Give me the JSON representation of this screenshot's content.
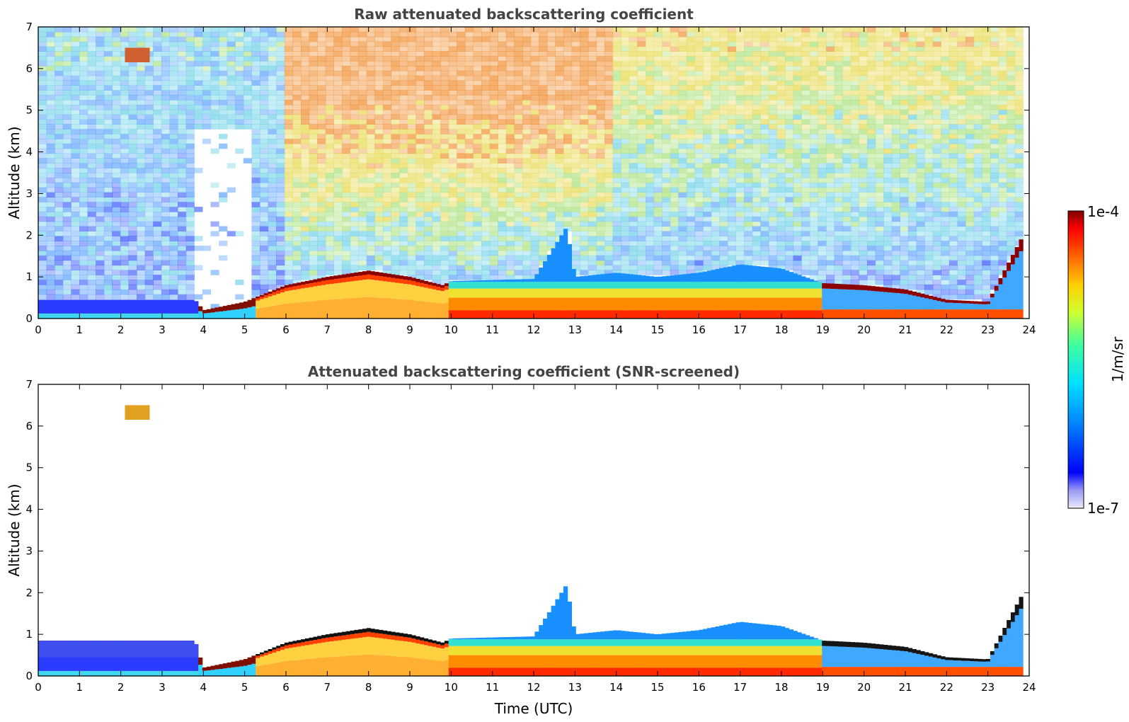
{
  "chart_data": [
    {
      "type": "heatmap",
      "title": "Raw attenuated backscattering coefficient",
      "xlabel": "",
      "ylabel": "Altitude (km)",
      "xlim": [
        0,
        24
      ],
      "ylim": [
        0,
        7
      ],
      "xticks": [
        "0",
        "1",
        "2",
        "3",
        "4",
        "5",
        "6",
        "7",
        "8",
        "9",
        "10",
        "11",
        "12",
        "13",
        "14",
        "15",
        "16",
        "17",
        "18",
        "19",
        "20",
        "21",
        "22",
        "23",
        "24"
      ],
      "yticks": [
        "0",
        "1",
        "2",
        "3",
        "4",
        "5",
        "6",
        "7"
      ],
      "screened": false,
      "boundary_layer_top_km": {
        "t": [
          0,
          3.8,
          4.0,
          5.0,
          6.0,
          7.0,
          8.0,
          9.0,
          9.8,
          10.0,
          12.0,
          12.8,
          13.0,
          14.0,
          15.0,
          16.0,
          17.0,
          18.0,
          19.0,
          20.0,
          21.0,
          22.0,
          23.0,
          23.8
        ],
        "km": [
          0.45,
          0.45,
          0.2,
          0.4,
          0.8,
          1.0,
          1.15,
          1.0,
          0.8,
          0.9,
          0.95,
          2.2,
          1.0,
          1.1,
          1.0,
          1.1,
          1.3,
          1.2,
          0.85,
          0.8,
          0.7,
          0.45,
          0.4,
          1.9
        ]
      },
      "elevated_layer": {
        "t_start": 2.1,
        "t_end": 2.7,
        "altitude_km": 6.3
      }
    },
    {
      "type": "heatmap",
      "title": "Attenuated backscattering coefficient (SNR-screened)",
      "xlabel": "Time (UTC)",
      "ylabel": "Altitude (km)",
      "xlim": [
        0,
        24
      ],
      "ylim": [
        0,
        7
      ],
      "xticks": [
        "0",
        "1",
        "2",
        "3",
        "4",
        "5",
        "6",
        "7",
        "8",
        "9",
        "10",
        "11",
        "12",
        "13",
        "14",
        "15",
        "16",
        "17",
        "18",
        "19",
        "20",
        "21",
        "22",
        "23",
        "24"
      ],
      "yticks": [
        "0",
        "1",
        "2",
        "3",
        "4",
        "5",
        "6",
        "7"
      ],
      "screened": true,
      "boundary_layer_top_km": {
        "t": [
          0,
          3.8,
          4.0,
          5.0,
          6.0,
          7.0,
          8.0,
          9.0,
          9.8,
          10.0,
          12.0,
          12.8,
          13.0,
          14.0,
          15.0,
          16.0,
          17.0,
          18.0,
          19.0,
          20.0,
          21.0,
          22.0,
          23.0,
          23.8
        ],
        "km": [
          0.85,
          0.85,
          0.2,
          0.4,
          0.8,
          1.0,
          1.15,
          1.0,
          0.8,
          0.9,
          0.95,
          2.2,
          1.0,
          1.1,
          1.0,
          1.1,
          1.3,
          1.2,
          0.85,
          0.8,
          0.7,
          0.45,
          0.4,
          1.9
        ]
      },
      "elevated_layer": {
        "t_start": 2.1,
        "t_end": 2.7,
        "altitude_km": 6.3
      }
    }
  ],
  "colorbar": {
    "max_label": "1e-4",
    "min_label": "1e-7",
    "unit_label": "1/m/sr",
    "colors": [
      "#7f0000",
      "#ff0000",
      "#ff7f00",
      "#ffd700",
      "#adff2f",
      "#00ff7f",
      "#00e5ff",
      "#00bfff",
      "#1e6fff",
      "#0000ff",
      "#8080ff",
      "#e6e6fa"
    ]
  }
}
